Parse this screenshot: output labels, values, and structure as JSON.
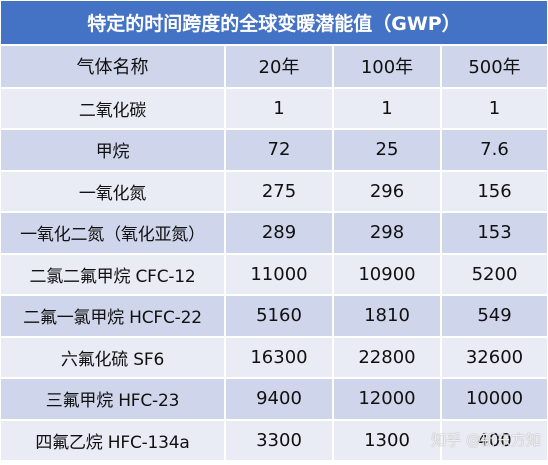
{
  "title": "特定的时间跨度的全球变暖潜能值（GWP）",
  "headers": [
    "气体名称",
    "20年",
    "100年",
    "500年"
  ],
  "rows": [
    [
      "二氧化碳",
      "1",
      "1",
      "1"
    ],
    [
      "甲烷",
      "72",
      "25",
      "7.6"
    ],
    [
      "一氧化氮",
      "275",
      "296",
      "156"
    ],
    [
      "一氧化二氮（氧化亚氮）",
      "289",
      "298",
      "153"
    ],
    [
      "二氯二氟甲烷 CFC-12",
      "11000",
      "10900",
      "5200"
    ],
    [
      "二氟一氯甲烷 HCFC-22",
      "5160",
      "1810",
      "549"
    ],
    [
      "六氟化硫 SF6",
      "16300",
      "22800",
      "32600"
    ],
    [
      "三氟甲烷 HFC-23",
      "9400",
      "12000",
      "10000"
    ],
    [
      "四氟乙烷 HFC-134a",
      "3300",
      "1300",
      "400"
    ]
  ],
  "watermark": "知乎 @新东方知"
}
